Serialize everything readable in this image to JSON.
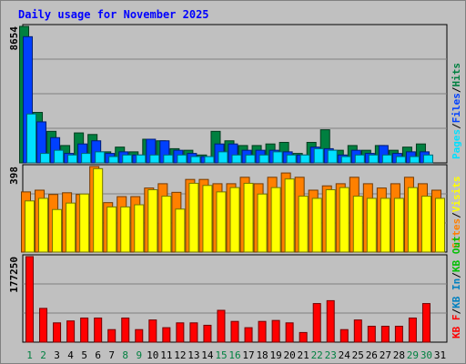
{
  "title": "Daily usage for November 2025",
  "chart_data": [
    {
      "type": "bar",
      "panel": "hits",
      "ymax_label": "8654",
      "ylim": [
        0,
        8654
      ],
      "legend": [
        {
          "label": "Pages",
          "color": "#00e0ff"
        },
        {
          "label": "Files",
          "color": "#0040ff"
        },
        {
          "label": "Hits",
          "color": "#008040"
        }
      ],
      "legend_sep": "/",
      "categories": [
        "1",
        "2",
        "3",
        "4",
        "5",
        "6",
        "7",
        "8",
        "9",
        "10",
        "11",
        "12",
        "13",
        "14",
        "15",
        "16",
        "17",
        "18",
        "19",
        "20",
        "21",
        "22",
        "23",
        "24",
        "25",
        "26",
        "27",
        "28",
        "29",
        "30",
        "31"
      ],
      "series": [
        {
          "name": "Hits",
          "color": "#008040",
          "values": [
            8654,
            3200,
            2000,
            1100,
            1900,
            1800,
            700,
            1000,
            700,
            1500,
            1400,
            900,
            800,
            500,
            2000,
            1400,
            1100,
            1100,
            1200,
            1300,
            600,
            1300,
            2100,
            800,
            1100,
            800,
            1100,
            800,
            1000,
            1200,
            0
          ]
        },
        {
          "name": "Files",
          "color": "#0040ff",
          "values": [
            8000,
            2600,
            1600,
            600,
            1200,
            1400,
            600,
            700,
            500,
            1500,
            1400,
            800,
            600,
            400,
            1200,
            1200,
            800,
            800,
            800,
            700,
            500,
            1000,
            900,
            500,
            800,
            600,
            1100,
            600,
            700,
            700,
            0
          ]
        },
        {
          "name": "Pages",
          "color": "#00e0ff",
          "values": [
            3100,
            600,
            800,
            500,
            600,
            700,
            400,
            500,
            500,
            500,
            500,
            500,
            400,
            400,
            700,
            500,
            500,
            500,
            700,
            500,
            500,
            900,
            800,
            400,
            500,
            500,
            500,
            400,
            400,
            500,
            0
          ]
        }
      ]
    },
    {
      "type": "bar",
      "panel": "visits",
      "ymax_label": "398",
      "ylim": [
        0,
        398
      ],
      "legend": [
        {
          "label": "Sites",
          "color": "#ff8000"
        },
        {
          "label": "Visits",
          "color": "#ffff00"
        }
      ],
      "legend_sep": "/",
      "categories": [
        "1",
        "2",
        "3",
        "4",
        "5",
        "6",
        "7",
        "8",
        "9",
        "10",
        "11",
        "12",
        "13",
        "14",
        "15",
        "16",
        "17",
        "18",
        "19",
        "20",
        "21",
        "22",
        "23",
        "24",
        "25",
        "26",
        "27",
        "28",
        "29",
        "30",
        "31"
      ],
      "series": [
        {
          "name": "Sites",
          "color": "#ff8000",
          "values": [
            280,
            288,
            268,
            276,
            268,
            398,
            230,
            258,
            258,
            298,
            318,
            278,
            338,
            338,
            318,
            318,
            348,
            318,
            348,
            368,
            348,
            288,
            308,
            318,
            348,
            318,
            298,
            318,
            348,
            318,
            288
          ]
        },
        {
          "name": "Visits",
          "color": "#ffff00",
          "values": [
            238,
            250,
            198,
            228,
            270,
            388,
            210,
            210,
            220,
            290,
            260,
            200,
            320,
            310,
            280,
            300,
            320,
            270,
            300,
            340,
            260,
            250,
            290,
            300,
            260,
            250,
            250,
            250,
            300,
            260,
            250
          ]
        }
      ]
    },
    {
      "type": "bar",
      "panel": "kbytes",
      "ymax_label": "177250",
      "ylim": [
        0,
        177250
      ],
      "legend": [
        {
          "label": "KB F",
          "color": "#ff0000"
        },
        {
          "label": "KB In",
          "color": "#0080c0"
        },
        {
          "label": "KB Out",
          "color": "#00c000"
        }
      ],
      "legend_sep": "/",
      "categories": [
        "1",
        "2",
        "3",
        "4",
        "5",
        "6",
        "7",
        "8",
        "9",
        "10",
        "11",
        "12",
        "13",
        "14",
        "15",
        "16",
        "17",
        "18",
        "19",
        "20",
        "21",
        "22",
        "23",
        "24",
        "25",
        "26",
        "27",
        "28",
        "29",
        "30",
        "31"
      ],
      "series": [
        {
          "name": "KB F",
          "color": "#ff0000",
          "values": [
            177250,
            70000,
            40000,
            44000,
            50000,
            50000,
            26000,
            50000,
            26000,
            46000,
            30000,
            40000,
            40000,
            35000,
            66000,
            43000,
            30000,
            43000,
            45000,
            40000,
            20000,
            80000,
            86000,
            26000,
            46000,
            33000,
            33000,
            33000,
            50000,
            80000,
            0
          ]
        }
      ]
    }
  ],
  "x_tick_colors": {
    "weekday": "#000000",
    "weekend": "#008040"
  },
  "weekend_days": [
    "1",
    "2",
    "8",
    "9",
    "15",
    "16",
    "22",
    "23",
    "29",
    "30"
  ]
}
